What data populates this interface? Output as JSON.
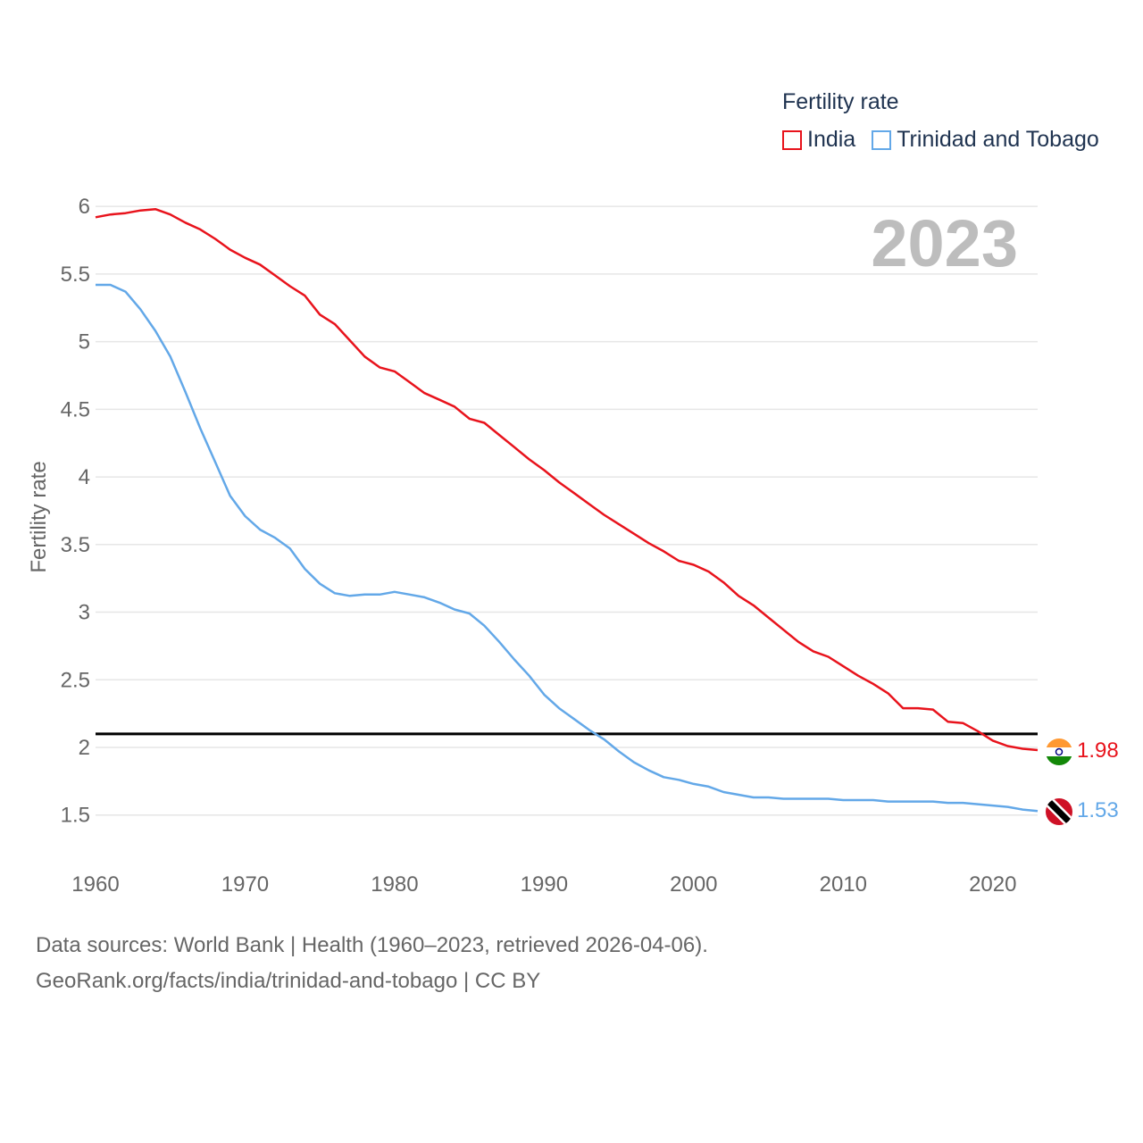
{
  "legend": {
    "title": "Fertility rate",
    "items": [
      {
        "label": "India",
        "color": "#e8131c"
      },
      {
        "label": "Trinidad and Tobago",
        "color": "#63a8e8"
      }
    ]
  },
  "footer": {
    "line1": "Data sources: World Bank | Health (1960–2023, retrieved 2026-04-06).",
    "line2": "GeoRank.org/facts/india/trinidad-and-tobago | CC BY"
  },
  "chart_data": {
    "type": "line",
    "title": "",
    "year_label": "2023",
    "xlabel": "",
    "ylabel": "Fertility rate",
    "xlim": [
      1960,
      2023
    ],
    "ylim": [
      1.3,
      6.1
    ],
    "x_ticks": [
      1960,
      1970,
      1980,
      1990,
      2000,
      2010,
      2020
    ],
    "y_ticks": [
      1.5,
      2,
      2.5,
      3,
      3.5,
      4,
      4.5,
      5,
      5.5,
      6
    ],
    "y_tick_labels": [
      "1.5",
      "2",
      "2.5",
      "3",
      "3.5",
      "4",
      "4.5",
      "5",
      "5.5",
      "6"
    ],
    "x_tick_labels": [
      "1960",
      "1970",
      "1980",
      "1990",
      "2000",
      "2010",
      "2020"
    ],
    "grid": true,
    "reference_line": {
      "y": 2.1,
      "color": "#000000"
    },
    "x": [
      1960,
      1961,
      1962,
      1963,
      1964,
      1965,
      1966,
      1967,
      1968,
      1969,
      1970,
      1971,
      1972,
      1973,
      1974,
      1975,
      1976,
      1977,
      1978,
      1979,
      1980,
      1981,
      1982,
      1983,
      1984,
      1985,
      1986,
      1987,
      1988,
      1989,
      1990,
      1991,
      1992,
      1993,
      1994,
      1995,
      1996,
      1997,
      1998,
      1999,
      2000,
      2001,
      2002,
      2003,
      2004,
      2005,
      2006,
      2007,
      2008,
      2009,
      2010,
      2011,
      2012,
      2013,
      2014,
      2015,
      2016,
      2017,
      2018,
      2019,
      2020,
      2021,
      2022,
      2023
    ],
    "series": [
      {
        "name": "India",
        "color": "#e8131c",
        "end_label": "1.98",
        "values": [
          5.92,
          5.94,
          5.95,
          5.97,
          5.98,
          5.94,
          5.88,
          5.83,
          5.76,
          5.68,
          5.62,
          5.57,
          5.49,
          5.41,
          5.34,
          5.2,
          5.13,
          5.01,
          4.89,
          4.81,
          4.78,
          4.7,
          4.62,
          4.57,
          4.52,
          4.43,
          4.4,
          4.31,
          4.22,
          4.13,
          4.05,
          3.96,
          3.88,
          3.8,
          3.72,
          3.65,
          3.58,
          3.51,
          3.45,
          3.38,
          3.35,
          3.3,
          3.22,
          3.12,
          3.05,
          2.96,
          2.87,
          2.78,
          2.71,
          2.67,
          2.6,
          2.53,
          2.47,
          2.4,
          2.29,
          2.29,
          2.28,
          2.19,
          2.18,
          2.12,
          2.05,
          2.01,
          1.99,
          1.98
        ]
      },
      {
        "name": "Trinidad and Tobago",
        "color": "#63a8e8",
        "end_label": "1.53",
        "values": [
          5.42,
          5.42,
          5.37,
          5.24,
          5.08,
          4.89,
          4.63,
          4.36,
          4.11,
          3.86,
          3.71,
          3.61,
          3.55,
          3.47,
          3.32,
          3.21,
          3.14,
          3.12,
          3.13,
          3.13,
          3.15,
          3.13,
          3.11,
          3.07,
          3.02,
          2.99,
          2.9,
          2.78,
          2.65,
          2.53,
          2.39,
          2.29,
          2.21,
          2.13,
          2.06,
          1.97,
          1.89,
          1.83,
          1.78,
          1.76,
          1.73,
          1.71,
          1.67,
          1.65,
          1.63,
          1.63,
          1.62,
          1.62,
          1.62,
          1.62,
          1.61,
          1.61,
          1.61,
          1.6,
          1.6,
          1.6,
          1.6,
          1.59,
          1.59,
          1.58,
          1.57,
          1.56,
          1.54,
          1.53
        ]
      }
    ]
  }
}
